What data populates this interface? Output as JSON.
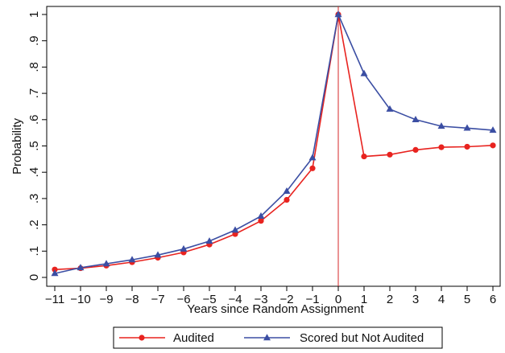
{
  "chart_data": {
    "type": "line",
    "xlabel": "Years since Random Assignment",
    "ylabel": "Probability",
    "x": [
      -11,
      -10,
      -9,
      -8,
      -7,
      -6,
      -5,
      -4,
      -3,
      -2,
      -1,
      0,
      1,
      2,
      3,
      4,
      5,
      6
    ],
    "xlim": [
      -11,
      6
    ],
    "ylim": [
      0,
      1
    ],
    "x_tick_labels": [
      "−11",
      "−10",
      "−9",
      "−8",
      "−7",
      "−6",
      "−5",
      "−4",
      "−3",
      "−2",
      "−1",
      "0",
      "1",
      "2",
      "3",
      "4",
      "5",
      "6"
    ],
    "y_ticks": [
      0,
      0.1,
      0.2,
      0.3,
      0.4,
      0.5,
      0.6,
      0.7,
      0.8,
      0.9,
      1
    ],
    "y_tick_labels": [
      "0",
      ".1",
      ".2",
      ".3",
      ".4",
      ".5",
      ".6",
      ".7",
      ".8",
      ".9",
      "1"
    ],
    "vertical_reference_line": {
      "x": 0,
      "color": "#d62728"
    },
    "grid": false,
    "legend_position": "bottom",
    "series": [
      {
        "name": "Audited",
        "color": "#e8231f",
        "marker": "circle",
        "values": [
          0.03,
          0.035,
          0.045,
          0.058,
          0.075,
          0.095,
          0.125,
          0.165,
          0.215,
          0.295,
          0.415,
          1.0,
          0.46,
          0.467,
          0.485,
          0.495,
          0.497,
          0.502
        ]
      },
      {
        "name": "Scored but Not Audited",
        "color": "#3b4ea3",
        "marker": "triangle",
        "values": [
          0.015,
          0.037,
          0.052,
          0.067,
          0.085,
          0.108,
          0.138,
          0.18,
          0.233,
          0.328,
          0.455,
          1.0,
          0.775,
          0.64,
          0.6,
          0.575,
          0.568,
          0.56
        ]
      }
    ]
  }
}
